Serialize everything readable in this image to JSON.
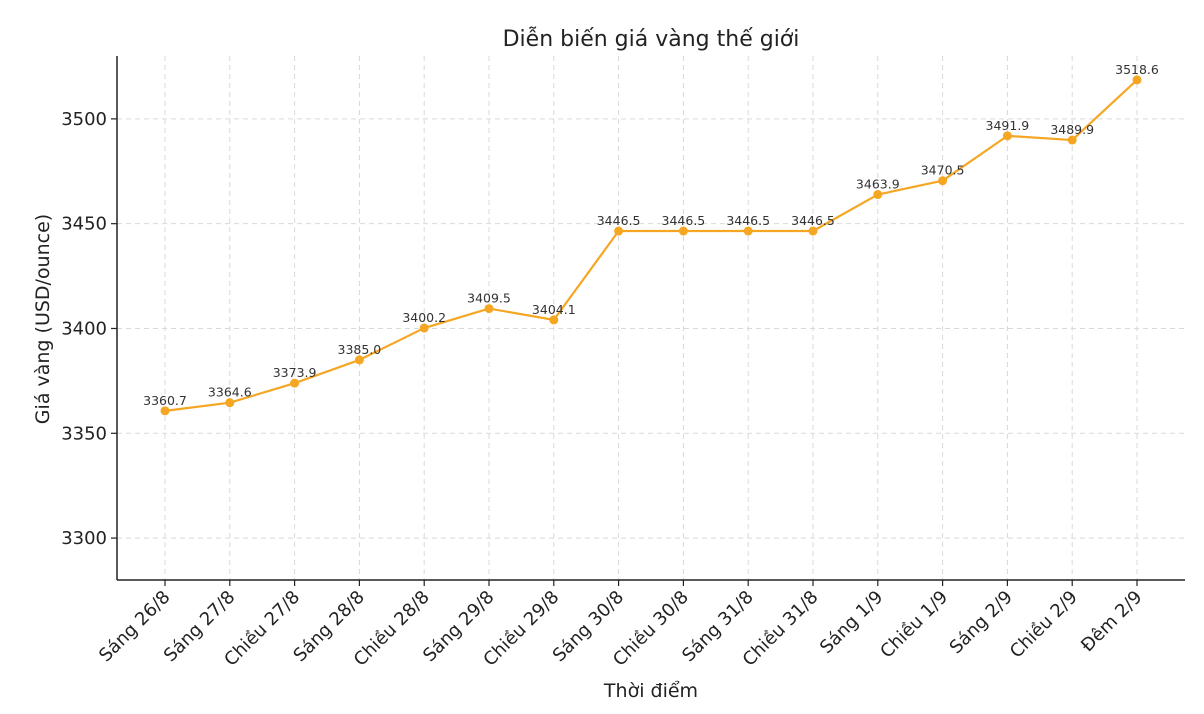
{
  "chart_data": {
    "type": "line",
    "title": "Diễn biến giá vàng thế giới",
    "xlabel": "Thời điểm",
    "ylabel": "Giá vàng (USD/ounce)",
    "categories": [
      "Sáng 26/8",
      "Sáng 27/8",
      "Chiều 27/8",
      "Sáng 28/8",
      "Chiều 28/8",
      "Sáng 29/8",
      "Chiều 29/8",
      "Sáng 30/8",
      "Chiều 30/8",
      "Sáng 31/8",
      "Chiều 31/8",
      "Sáng 1/9",
      "Chiều 1/9",
      "Sáng 2/9",
      "Chiều 2/9",
      "Đêm 2/9"
    ],
    "values": [
      3360.7,
      3364.6,
      3373.9,
      3385.0,
      3400.2,
      3409.5,
      3404.1,
      3446.5,
      3446.5,
      3446.5,
      3446.5,
      3463.9,
      3470.5,
      3491.9,
      3489.9,
      3518.6
    ],
    "value_labels": [
      "3360.7",
      "3364.6",
      "3373.9",
      "3385.0",
      "3400.2",
      "3409.5",
      "3404.1",
      "3446.5",
      "3446.5",
      "3446.5",
      "3446.5",
      "3463.9",
      "3470.5",
      "3491.9",
      "3489.9",
      "3518.6"
    ],
    "yticks": [
      3300,
      3350,
      3400,
      3450,
      3500
    ],
    "ylim": [
      3280,
      3530
    ],
    "grid": true,
    "line_color": "#f5a623"
  }
}
